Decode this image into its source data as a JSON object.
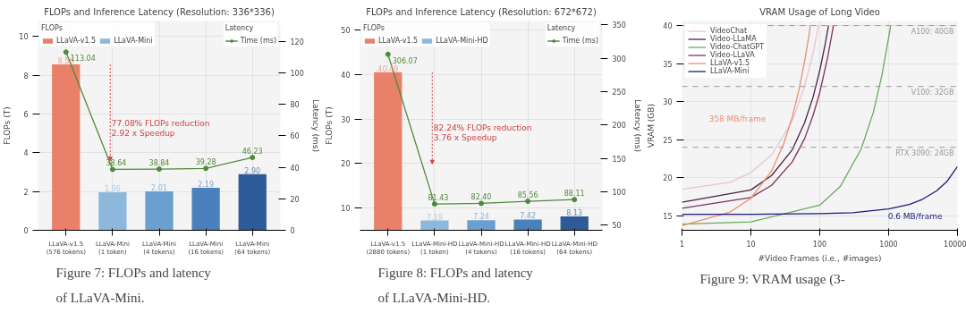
{
  "chart_data": [
    {
      "type": "bar",
      "title": "FLOPs and Inference Latency (Resolution: 336*336)",
      "ylabel": "FLOPs (T)",
      "y2label": "Latency (ms)",
      "legend_title": "FLOPs",
      "categories": [
        "LLaVA-v1.5\n(576 tokens)",
        "LLaVA-Mini\n(1 token)",
        "LLaVA-Mini\n(4 tokens)",
        "LLaVA-Mini\n(16 tokens)",
        "LLaVA-Mini\n(64 tokens)"
      ],
      "series": [
        {
          "name": "LLaVA-v1.5",
          "color": "#e8806a",
          "values": [
            8.56,
            null,
            null,
            null,
            null
          ],
          "value_labels": [
            "8.56",
            null,
            null,
            null,
            null
          ]
        },
        {
          "name": "LLaVA-Mini",
          "colors": [
            null,
            "#8db8dc",
            "#6a9fcf",
            "#4a80bd",
            "#2d5b97"
          ],
          "values": [
            null,
            1.96,
            2.01,
            2.19,
            2.9
          ],
          "value_labels": [
            null,
            "1.96",
            "2.01",
            "2.19",
            "2.90"
          ]
        },
        {
          "name": "Time (ms)",
          "type": "line",
          "axis": "y2",
          "color": "#4f8a3a",
          "marker": "circle",
          "values": [
            113.04,
            38.64,
            38.84,
            39.28,
            46.23
          ],
          "value_labels": [
            "113.04",
            "38.64",
            "38.84",
            "39.28",
            "46.23"
          ]
        }
      ],
      "ylim": [
        0,
        10.8
      ],
      "yticks": [
        0,
        2,
        4,
        6,
        8,
        10
      ],
      "y2lim": [
        0,
        132.8
      ],
      "y2ticks": [
        0,
        20,
        40,
        60,
        80,
        100,
        120
      ],
      "grid": true,
      "legend": "top",
      "annotations": [
        "Latency",
        "77.08%  FLOPs reduction",
        "2.92 x    Speedup",
        "Figure 7: FLOPs and latency of LLaVA-Mini."
      ]
    },
    {
      "type": "bar",
      "title": "FLOPs and Inference Latency (Resolution: 672*672)",
      "ylabel": "FLOPs (T)",
      "y2label": "Latency (ms)",
      "legend_title": "FLOPs",
      "categories": [
        "LLaVA-v1.5\n(2880 tokens)",
        "LLaVA-Mini-HD\n(1 token)",
        "LLaVA-Mini-HD\n(4 tokens)",
        "LLaVA-Mini-HD\n(16 tokens)",
        "LLaVA-Mini-HD\n(64 tokens)"
      ],
      "series": [
        {
          "name": "LLaVA-v1.5",
          "color": "#e8806a",
          "values": [
            40.49,
            null,
            null,
            null,
            null
          ],
          "value_labels": [
            "40.49",
            null,
            null,
            null,
            null
          ]
        },
        {
          "name": "LLaVA-Mini-HD",
          "colors": [
            null,
            "#8db8dc",
            "#6a9fcf",
            "#4a80bd",
            "#2d5b97"
          ],
          "values": [
            null,
            7.19,
            7.24,
            7.42,
            8.13
          ],
          "value_labels": [
            null,
            "7.19",
            "7.24",
            "7.42",
            "8.13"
          ]
        },
        {
          "name": "Time (ms)",
          "type": "line",
          "axis": "y2",
          "color": "#4f8a3a",
          "marker": "circle",
          "values": [
            306.07,
            81.43,
            82.4,
            85.56,
            88.11
          ],
          "value_labels": [
            "306.07",
            "81.43",
            "82.40",
            "85.56",
            "88.11"
          ]
        }
      ],
      "ylim": [
        5,
        52
      ],
      "yticks": [
        10,
        20,
        30,
        40,
        50
      ],
      "y2lim": [
        42,
        356
      ],
      "y2ticks": [
        50,
        100,
        150,
        200,
        250,
        300,
        350
      ],
      "grid": true,
      "legend": "top",
      "annotations": [
        "Latency",
        "82.24%  FLOPs reduction",
        "3.76 x    Speedup",
        "Figure 8: FLOPs and latency of LLaVA-Mini-HD."
      ]
    },
    {
      "type": "line",
      "title": "VRAM Usage of Long Video",
      "xlabel": "#Video Frames (i.e., #images)",
      "ylabel": "VRAM (GB)",
      "log": "x",
      "series": [
        {
          "name": "VideoChat",
          "color": "#e8c4cf",
          "x": [
            1,
            5,
            10,
            20,
            40,
            60,
            80,
            96
          ],
          "values": [
            18.5,
            19.4,
            20.7,
            23.0,
            27.5,
            32.0,
            36.4,
            40.0
          ]
        },
        {
          "name": "Video-LLaMA",
          "color": "#4a2040",
          "x": [
            1,
            10,
            20,
            40,
            60,
            80,
            100,
            120,
            134
          ],
          "values": [
            16.8,
            18.4,
            20.3,
            23.7,
            27.2,
            30.6,
            34.1,
            37.6,
            40.0
          ]
        },
        {
          "name": "Video-ChatGPT",
          "color": "#6aaa60",
          "x": [
            1,
            10,
            100,
            200,
            400,
            600,
            800,
            1000,
            1070
          ],
          "values": [
            13.9,
            14.2,
            16.4,
            18.9,
            23.8,
            28.6,
            33.5,
            38.4,
            40.0
          ]
        },
        {
          "name": "Video-LLaVA",
          "color": "#803060",
          "x": [
            1,
            10,
            20,
            40,
            60,
            80,
            100,
            130,
            158
          ],
          "values": [
            16.0,
            17.4,
            19.0,
            22.1,
            25.1,
            28.2,
            31.2,
            35.8,
            40.0
          ]
        },
        {
          "name": "LLaVA-v1.5",
          "color": "#e89070",
          "x": [
            1,
            5,
            10,
            20,
            30,
            40,
            50,
            60,
            70,
            73
          ],
          "values": [
            13.7,
            15.5,
            17.3,
            20.9,
            24.5,
            28.0,
            31.6,
            35.2,
            38.8,
            40.0
          ]
        },
        {
          "name": "LLaVA-Mini",
          "color": "#1a1a80",
          "x": [
            1,
            10,
            100,
            300,
            1000,
            2000,
            3000,
            5000,
            7000,
            10000
          ],
          "values": [
            15.2,
            15.2,
            15.3,
            15.4,
            15.9,
            16.5,
            17.1,
            18.3,
            19.5,
            21.5
          ]
        }
      ],
      "xlim": [
        1,
        10000
      ],
      "xticks": [
        1,
        10,
        100,
        1000,
        10000
      ],
      "ylim": [
        13.1,
        40.6
      ],
      "yticks": [
        15,
        20,
        25,
        30,
        35,
        40
      ],
      "grid": true,
      "legend": "top left",
      "ref_lines": [
        {
          "axis": "y",
          "value": 40,
          "label": "A100: 40GB",
          "color": "#999999",
          "line_style": "dashed"
        },
        {
          "axis": "y",
          "value": 32,
          "label": "V100: 32GB",
          "color": "#999999",
          "line_style": "dashed"
        },
        {
          "axis": "y",
          "value": 24,
          "label": "RTX 3090: 24GB",
          "color": "#999999",
          "line_style": "dashed"
        }
      ],
      "annotations": [
        "358 MB/frame",
        "0.6 MB/frame",
        "Figure 9:  VRAM usage (3-"
      ]
    }
  ]
}
